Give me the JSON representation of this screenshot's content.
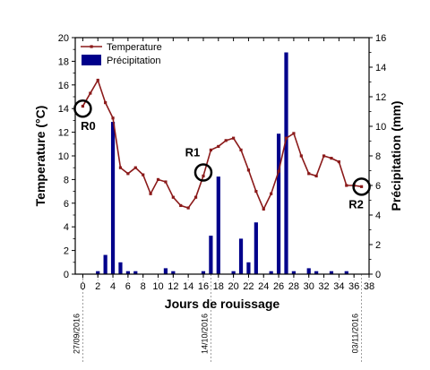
{
  "chart_data": {
    "type": "bar+line",
    "xlabel": "Jours de rouissage",
    "ylabel_left": "Temperature (°C)",
    "ylabel_right": "Précipitation (mm)",
    "xlim": [
      -1,
      38
    ],
    "ylim_left": [
      0,
      20
    ],
    "ylim_right": [
      0,
      16
    ],
    "x_ticks": [
      0,
      2,
      4,
      6,
      8,
      10,
      12,
      14,
      16,
      18,
      20,
      22,
      24,
      26,
      28,
      30,
      32,
      34,
      36,
      38
    ],
    "y_left_ticks": [
      0,
      2,
      4,
      6,
      8,
      10,
      12,
      14,
      16,
      18,
      20
    ],
    "y_right_ticks": [
      0,
      2,
      4,
      6,
      8,
      10,
      12,
      14,
      16
    ],
    "legend": {
      "position": "top-left",
      "items": [
        {
          "label": "Temperature",
          "color": "#8b1a1a",
          "kind": "line"
        },
        {
          "label": "Précipitation",
          "color": "#00008b",
          "kind": "bar"
        }
      ]
    },
    "temperature": {
      "name": "Temperature",
      "color": "#8b1a1a",
      "x": [
        0,
        1,
        2,
        3,
        4,
        5,
        6,
        7,
        8,
        9,
        10,
        11,
        12,
        13,
        14,
        15,
        16,
        17,
        18,
        19,
        20,
        21,
        22,
        23,
        24,
        25,
        26,
        27,
        28,
        29,
        30,
        31,
        32,
        33,
        34,
        35,
        36,
        37
      ],
      "y": [
        14.2,
        15.3,
        16.4,
        14.5,
        13.2,
        9.0,
        8.5,
        9.0,
        8.4,
        6.8,
        8.0,
        7.8,
        6.5,
        5.8,
        5.6,
        6.5,
        8.3,
        10.5,
        10.8,
        11.3,
        11.5,
        10.5,
        8.8,
        7.0,
        5.5,
        6.8,
        8.7,
        11.5,
        11.9,
        10.0,
        8.5,
        8.3,
        10.0,
        9.8,
        9.5,
        7.5,
        7.5,
        7.4
      ]
    },
    "precipitation": {
      "name": "Précipitation",
      "color": "#00008b",
      "x": [
        2,
        3,
        4,
        5,
        6,
        7,
        11,
        12,
        16,
        17,
        18,
        20,
        21,
        22,
        23,
        25,
        26,
        27,
        28,
        30,
        31,
        33,
        35
      ],
      "y": [
        0.2,
        1.3,
        10.3,
        0.8,
        0.2,
        0.2,
        0.4,
        0.2,
        0.2,
        2.6,
        6.6,
        0.2,
        2.4,
        0.8,
        3.5,
        0.2,
        9.5,
        15.0,
        0.2,
        0.4,
        0.2,
        0.2,
        0.2
      ]
    },
    "markers": [
      {
        "label": "R0",
        "x": 0,
        "y": 14
      },
      {
        "label": "R1",
        "x": 16,
        "y": 8.6
      },
      {
        "label": "R2",
        "x": 37,
        "y": 7.4
      }
    ],
    "date_labels": [
      {
        "x": 0,
        "text": "27/09/2016"
      },
      {
        "x": 17,
        "text": "14/10/2016"
      },
      {
        "x": 37,
        "text": "03/11/2016"
      }
    ]
  }
}
